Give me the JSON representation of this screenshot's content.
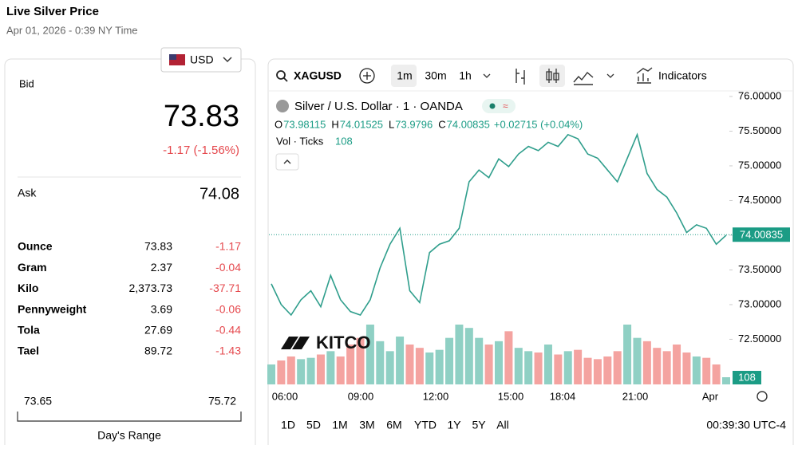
{
  "header": {
    "title": "Live Silver Price",
    "timestamp": "Apr 01, 2026 - 0:39 NY Time"
  },
  "currency": "USD",
  "quote": {
    "bid_label": "Bid",
    "bid": 73.83,
    "change": "-1.17 (-1.56%)",
    "ask_label": "Ask",
    "ask": 74.08
  },
  "units": {
    "rows": [
      [
        "Ounce",
        73.83,
        -1.17
      ],
      [
        "Gram",
        2.37,
        -0.04
      ],
      [
        "Kilo",
        "2,373.73",
        -37.71
      ],
      [
        "Pennyweight",
        3.69,
        -0.06
      ],
      [
        "Tola",
        27.69,
        -0.44
      ],
      [
        "Tael",
        89.72,
        -1.43
      ]
    ]
  },
  "range": {
    "low": 73.65,
    "high": 75.72,
    "label": "Day's Range"
  },
  "toolbar": {
    "symbol": "XAGUSD",
    "intervals": [
      "1m",
      "30m",
      "1h"
    ],
    "indicators": "Indicators"
  },
  "chart_data": {
    "type": "line",
    "title": "Silver / U.S. Dollar · 1 · OANDA",
    "ohlc": [
      {
        "label": "O",
        "value": 73.98115
      },
      {
        "label": "H",
        "value": 74.01525
      },
      {
        "label": "L",
        "value": 73.9796
      },
      {
        "label": "C",
        "value": 74.00835
      }
    ],
    "change": "+0.02715 (+0.04%)",
    "volume_title": "Vol · Ticks",
    "volume_last": 108,
    "last_price": 74.00835,
    "color": "#2f9e8c",
    "values": [
      73.3,
      73.0,
      72.85,
      73.07,
      73.2,
      72.97,
      73.42,
      73.07,
      72.9,
      72.85,
      73.07,
      73.53,
      73.87,
      74.1,
      73.2,
      73.03,
      73.75,
      73.87,
      73.92,
      74.1,
      74.77,
      74.94,
      74.83,
      75.1,
      74.99,
      75.17,
      75.28,
      75.22,
      75.34,
      75.28,
      75.45,
      75.39,
      75.17,
      75.11,
      74.94,
      74.77,
      75.11,
      75.45,
      74.89,
      74.66,
      74.55,
      74.32,
      74.04,
      74.15,
      74.1,
      73.87,
      74.0
    ],
    "volume": [
      300,
      360,
      420,
      380,
      400,
      450,
      500,
      420,
      600,
      700,
      900,
      650,
      500,
      720,
      600,
      550,
      480,
      520,
      700,
      900,
      850,
      700,
      600,
      650,
      800,
      550,
      500,
      480,
      600,
      450,
      500,
      520,
      400,
      380,
      420,
      500,
      900,
      700,
      650,
      550,
      500,
      600,
      480,
      420,
      400,
      300,
      108
    ],
    "volume_lim": [
      0,
      1200
    ],
    "volume_up_color": "#8fd0c4",
    "volume_down_color": "#f4a3a0",
    "ylim": [
      71.85,
      76.08
    ],
    "yticks": [
      {
        "value": 72.5,
        "label": "72.50000"
      },
      {
        "value": 73,
        "label": "73.00000"
      },
      {
        "value": 73.5,
        "label": "73.50000"
      },
      {
        "value": 74,
        "label": "74.00000"
      },
      {
        "value": 74.5,
        "label": "74.50000"
      },
      {
        "value": 75,
        "label": "75.00000"
      },
      {
        "value": 75.5,
        "label": "75.50000"
      },
      {
        "value": 76,
        "label": "76.00000"
      }
    ],
    "xtick_labels": [
      "06:00",
      "09:00",
      "12:00",
      "15:00",
      "18:04",
      "21:00",
      "Apr"
    ]
  },
  "ranges": [
    "1D",
    "5D",
    "1M",
    "3M",
    "6M",
    "YTD",
    "1Y",
    "5Y",
    "All"
  ],
  "clock": "00:39:30 UTC-4",
  "logo": "KITCO"
}
